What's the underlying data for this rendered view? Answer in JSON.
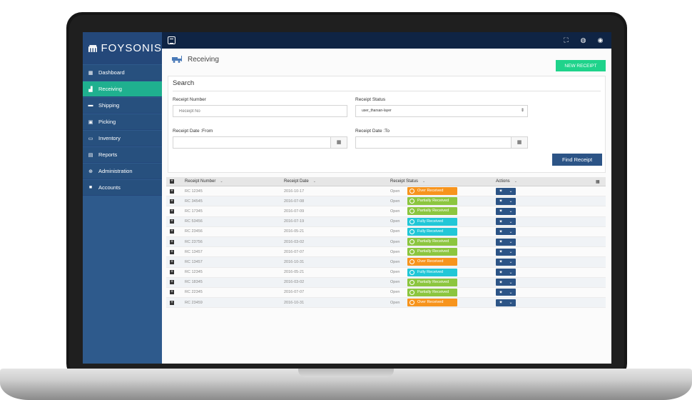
{
  "brand": {
    "name": "FOYSONIS"
  },
  "sidebar": {
    "items": [
      {
        "label": "Dashboard",
        "icon": "dashboard-icon",
        "active": false
      },
      {
        "label": "Receiving",
        "icon": "forklift-icon",
        "active": true
      },
      {
        "label": "Shipping",
        "icon": "truck-icon",
        "active": false
      },
      {
        "label": "Picking",
        "icon": "box-icon",
        "active": false
      },
      {
        "label": "Inventory",
        "icon": "inventory-icon",
        "active": false
      },
      {
        "label": "Reports",
        "icon": "report-icon",
        "active": false
      },
      {
        "label": "Administration",
        "icon": "gear-icon",
        "active": false
      },
      {
        "label": "Accounts",
        "icon": "account-icon",
        "active": false
      }
    ]
  },
  "header": {
    "title": "Receiving",
    "new_receipt_label": "NEW RECEIPT"
  },
  "search": {
    "title": "Search",
    "receipt_number_label": "Receipt Number",
    "receipt_number_placeholder": "Receipt No",
    "receipt_status_label": "Receipt Status",
    "receipt_status_value": "user_tharsan-layer",
    "date_from_label": "Receipt Date :From",
    "date_to_label": "Receipt Date :To",
    "find_label": "Find Receipt"
  },
  "table": {
    "columns": [
      "Receipt Number",
      "Receipt Date",
      "Receipt Status",
      "Actions"
    ],
    "rows": [
      {
        "number": "RC 12345",
        "date": "2016-10-17",
        "status": "Open",
        "badge": "Over Received",
        "kind": "over"
      },
      {
        "number": "RC 34545",
        "date": "2016-07-08",
        "status": "Open",
        "badge": "Partially Received",
        "kind": "partial"
      },
      {
        "number": "RC 17345",
        "date": "2016-07-09",
        "status": "Open",
        "badge": "Partially Received",
        "kind": "partial"
      },
      {
        "number": "RC 53456",
        "date": "2016-07-19",
        "status": "Open",
        "badge": "Fully Received",
        "kind": "full"
      },
      {
        "number": "RC 23456",
        "date": "2016-05-21",
        "status": "Open",
        "badge": "Fully Received",
        "kind": "full"
      },
      {
        "number": "RC 23756",
        "date": "2016-03-02",
        "status": "Open",
        "badge": "Partially Received",
        "kind": "partial"
      },
      {
        "number": "RC 13457",
        "date": "2016-07-07",
        "status": "Open",
        "badge": "Partially Received",
        "kind": "partial"
      },
      {
        "number": "RC 13457",
        "date": "2016-10-31",
        "status": "Open",
        "badge": "Over Received",
        "kind": "over"
      },
      {
        "number": "RC 12345",
        "date": "2016-05-21",
        "status": "Open",
        "badge": "Fully Received",
        "kind": "full"
      },
      {
        "number": "RC 18345",
        "date": "2016-03-02",
        "status": "Open",
        "badge": "Partially Received",
        "kind": "partial"
      },
      {
        "number": "RC 22345",
        "date": "2016-07-07",
        "status": "Open",
        "badge": "Partially Received",
        "kind": "partial"
      },
      {
        "number": "RC 23459",
        "date": "2016-10-31",
        "status": "Open",
        "badge": "Over Received",
        "kind": "over"
      }
    ]
  },
  "colors": {
    "sidebar": "#2e5a8c",
    "active": "#1fb08f",
    "topbar": "#0f2444",
    "over": "#f7941d",
    "partial": "#8cc63f",
    "full": "#21c7d7",
    "primary_button": "#2c5486",
    "new_receipt": "#1fd38b"
  }
}
